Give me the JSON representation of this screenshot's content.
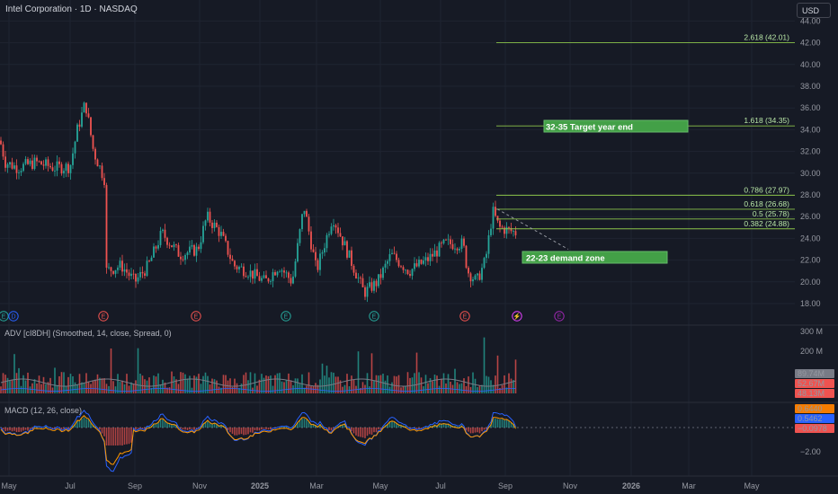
{
  "header": {
    "title": "Intel Corporation · 1D · NASDAQ",
    "currency_button": "USD"
  },
  "price_axis": {
    "ticks": [
      "44.00",
      "42.00",
      "40.00",
      "38.00",
      "36.00",
      "34.00",
      "32.00",
      "30.00",
      "28.00",
      "26.00",
      "24.00",
      "22.00",
      "20.00",
      "18.00"
    ],
    "values": [
      44,
      42,
      40,
      38,
      36,
      34,
      32,
      30,
      28,
      26,
      24,
      22,
      20,
      18
    ]
  },
  "time_axis": {
    "labels": [
      "May",
      "Jul",
      "Sep",
      "Nov",
      "2025",
      "Mar",
      "May",
      "Jul",
      "Sep",
      "Nov",
      "2026",
      "Mar",
      "May"
    ],
    "bold_labels": [
      "2025",
      "2026"
    ]
  },
  "fib_levels": [
    {
      "label": "2.618 (42.01)",
      "value": 42.01
    },
    {
      "label": "1.618 (34.35)",
      "value": 34.35
    },
    {
      "label": "0.786 (27.97)",
      "value": 27.97
    },
    {
      "label": "0.618 (26.68)",
      "value": 26.68
    },
    {
      "label": "0.5 (25.78)",
      "value": 25.78
    },
    {
      "label": "0.382 (24.88)",
      "value": 24.88
    }
  ],
  "annotations": {
    "target": "32-35 Target year end",
    "demand": "22-23 demand zone"
  },
  "events": [
    {
      "letter": "E",
      "kind": "earnings",
      "color": "#26a69a"
    },
    {
      "letter": "D",
      "kind": "dividend",
      "color": "#2962ff"
    },
    {
      "letter": "E",
      "kind": "earnings",
      "color": "#ef5350"
    },
    {
      "letter": "E",
      "kind": "earnings",
      "color": "#ef5350"
    },
    {
      "letter": "E",
      "kind": "earnings",
      "color": "#26a69a"
    },
    {
      "letter": "E",
      "kind": "earnings",
      "color": "#26a69a"
    },
    {
      "letter": "E",
      "kind": "earnings",
      "color": "#ef5350"
    },
    {
      "letter": "⚡",
      "kind": "split",
      "color": "#e040fb"
    },
    {
      "letter": "E",
      "kind": "earnings",
      "color": "#9c27b0"
    }
  ],
  "adv_panel": {
    "label": "ADV [cI8DH] (Smoothed, 14, close, Spread, 0)",
    "axis": [
      "300 M",
      "200 M"
    ],
    "axis_values": [
      300,
      200
    ],
    "values": [
      {
        "text": "89.74M",
        "color": "#787b86"
      },
      {
        "text": "52.67M",
        "color": "#ef5350"
      },
      {
        "text": "48.13M",
        "color": "#ef5350"
      }
    ]
  },
  "macd_panel": {
    "label": "MACD (12, 26, close)",
    "axis": [
      "−2.00"
    ],
    "axis_values": [
      -2
    ],
    "values": [
      {
        "text": "0.6440",
        "color": "#f57c00"
      },
      {
        "text": "0.5462",
        "color": "#2962ff"
      },
      {
        "text": "−0.0978",
        "color": "#ef5350"
      }
    ]
  },
  "colors": {
    "up": "#26a69a",
    "down": "#ef5350",
    "fib": "#8bc34a",
    "box": "#43a047",
    "macd": "#2962ff",
    "signal": "#ff9800",
    "adv_line": "#787b86"
  }
}
